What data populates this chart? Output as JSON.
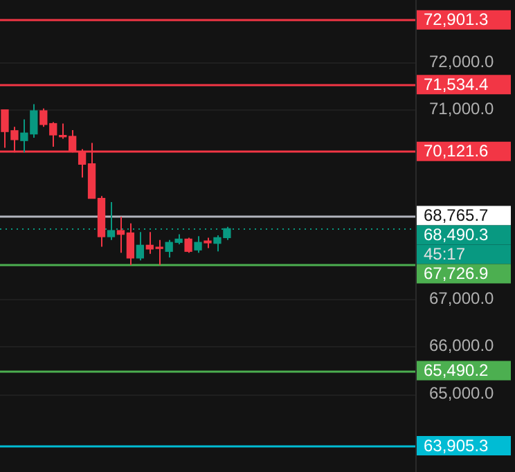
{
  "chart_data": {
    "type": "candlestick",
    "categories": [
      null,
      null,
      null,
      null,
      null,
      null,
      null,
      null,
      null,
      null,
      null,
      null,
      null,
      null,
      null,
      null,
      null,
      null,
      null,
      null,
      null,
      null,
      null,
      null,
      null,
      null,
      null,
      null,
      null,
      null,
      null,
      null,
      null,
      null,
      null,
      null,
      null,
      null,
      null,
      null,
      null,
      null,
      null
    ],
    "ohlc": [
      [
        71000,
        71000,
        70200,
        70540
      ],
      [
        70560,
        70640,
        70100,
        70370
      ],
      [
        70350,
        70800,
        70100,
        70510
      ],
      [
        70490,
        71120,
        70410,
        70980
      ],
      [
        70980,
        71030,
        70640,
        70690
      ],
      [
        70710,
        70740,
        70220,
        70470
      ],
      [
        70460,
        70710,
        70390,
        70430
      ],
      [
        70440,
        70570,
        70100,
        70120
      ],
      [
        70100,
        70170,
        69570,
        69850
      ],
      [
        69860,
        70300,
        69130,
        69130
      ],
      [
        69130,
        69180,
        68110,
        68320
      ],
      [
        68320,
        69050,
        68250,
        68450
      ],
      [
        68450,
        68740,
        67980,
        68370
      ],
      [
        68400,
        68600,
        67720,
        67870
      ],
      [
        67870,
        68420,
        67820,
        68140
      ],
      [
        68140,
        68420,
        67960,
        68060
      ],
      [
        68090,
        68250,
        67720,
        68070
      ],
      [
        68010,
        68250,
        67880,
        68200
      ],
      [
        68200,
        68370,
        68160,
        68270
      ],
      [
        68270,
        68300,
        67980,
        68010
      ],
      [
        68040,
        68330,
        67980,
        68200
      ],
      [
        68230,
        68300,
        68080,
        68190
      ],
      [
        68180,
        68350,
        68010,
        68300
      ],
      [
        68300,
        68530,
        68250,
        68490
      ],
      null,
      null,
      null,
      null,
      null,
      null,
      null,
      null,
      null,
      null,
      null,
      null,
      null,
      null,
      null,
      null,
      null,
      null,
      null
    ],
    "colors": [
      "#f23645",
      "#f23645",
      "#089981",
      "#089981",
      "#f23645",
      "#f23645",
      "#f23645",
      "#f23645",
      "#f23645",
      "#f23645",
      "#f23645",
      "#089981",
      "#f23645",
      "#f23645",
      "#089981",
      "#f23645",
      "#f23645",
      "#089981",
      "#089981",
      "#f23645",
      "#089981",
      "#f23645",
      "#089981",
      "#089981",
      null,
      null,
      null,
      null,
      null,
      null,
      null,
      null,
      null,
      null,
      null,
      null,
      null,
      null,
      null,
      null,
      null,
      null,
      null
    ],
    "ylim": [
      63350,
      73320
    ],
    "yticks": [
      {
        "value": 65000,
        "label": "65,000.0"
      },
      {
        "value": 66000,
        "label": "66,000.0"
      },
      {
        "value": 67000,
        "label": "67,000.0"
      },
      {
        "value": 71000,
        "label": "71,000.0"
      },
      {
        "value": 72000,
        "label": "72,000.0"
      }
    ],
    "tick_labels": "y",
    "grid": "y",
    "ref_lines": [
      {
        "axis": "y",
        "value": 72901.3,
        "label": "72,901.3",
        "color": "#f23645"
      },
      {
        "axis": "y",
        "value": 71534.4,
        "label": "71,534.4",
        "color": "#f23645"
      },
      {
        "axis": "y",
        "value": 70121.6,
        "label": "70,121.6",
        "color": "#f23645"
      },
      {
        "axis": "y",
        "value": 68765.7,
        "label": "68,765.7",
        "color": "#b2b5be"
      },
      {
        "axis": "y",
        "value": 68490.3,
        "label": "68,490.3",
        "color": "#089981",
        "line_style": "dotted"
      },
      {
        "axis": "y",
        "value": 67726.9,
        "label": "67,726.9",
        "color": "#4caf50"
      },
      {
        "axis": "y",
        "value": 65490.2,
        "label": "65,490.2",
        "color": "#4caf50"
      },
      {
        "axis": "y",
        "value": 63905.3,
        "label": "63,905.3",
        "color": "#00bcd4"
      }
    ],
    "annotations": [
      "45:17"
    ]
  }
}
